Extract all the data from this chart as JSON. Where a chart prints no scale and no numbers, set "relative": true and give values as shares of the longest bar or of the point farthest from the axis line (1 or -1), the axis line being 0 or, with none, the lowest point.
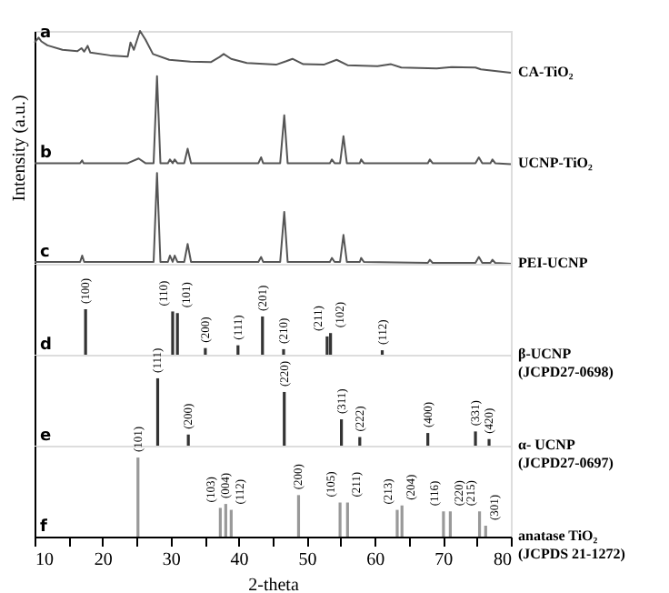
{
  "chart_data": [
    {
      "type": "line",
      "relative": true,
      "ylabel": "Intensity (a.u.)",
      "xlim": [
        10,
        80
      ],
      "tick_labels": false,
      "series": [
        {
          "name": "CA-TiO₂",
          "color": "#555555",
          "x": [
            10.0,
            10.6,
            11.0,
            11.9,
            14.1,
            16.3,
            16.9,
            17.3,
            17.8,
            18.2,
            21.1,
            23.7,
            24.1,
            24.6,
            25.5,
            26.3,
            27.4,
            29.8,
            32.9,
            35.9,
            37.2,
            37.8,
            38.9,
            41.2,
            45.5,
            47.0,
            47.9,
            49.5,
            52.5,
            54.4,
            56.0,
            60.4,
            62.4,
            63.9,
            69.1,
            71.3,
            74.8,
            75.6,
            80.0
          ],
          "values": [
            0.95,
            0.971,
            0.955,
            0.938,
            0.919,
            0.913,
            0.926,
            0.911,
            0.936,
            0.907,
            0.895,
            0.89,
            0.95,
            0.919,
            1.0,
            0.963,
            0.901,
            0.876,
            0.868,
            0.866,
            0.888,
            0.901,
            0.88,
            0.862,
            0.855,
            0.87,
            0.88,
            0.857,
            0.855,
            0.876,
            0.853,
            0.849,
            0.857,
            0.843,
            0.839,
            0.845,
            0.843,
            0.835,
            0.82
          ]
        },
        {
          "name": "UCNP-TiO₂",
          "color": "#555555",
          "x": [
            10.0,
            16.7,
            17.0,
            17.2,
            23.7,
            25.3,
            26.3,
            27.5,
            28.0,
            28.5,
            29.6,
            29.9,
            30.3,
            30.6,
            31.0,
            32.0,
            32.5,
            33.0,
            42.9,
            43.3,
            43.6,
            46.1,
            46.7,
            47.2,
            53.4,
            53.7,
            54.1,
            54.9,
            55.4,
            55.9,
            57.8,
            58.0,
            58.4,
            67.8,
            68.1,
            68.5,
            74.8,
            75.3,
            75.8,
            77.0,
            77.3,
            77.7,
            80.0
          ],
          "values": [
            0.432,
            0.432,
            0.444,
            0.432,
            0.432,
            0.452,
            0.432,
            0.432,
            0.806,
            0.432,
            0.432,
            0.448,
            0.432,
            0.448,
            0.432,
            0.432,
            0.494,
            0.432,
            0.432,
            0.457,
            0.432,
            0.432,
            0.638,
            0.432,
            0.432,
            0.448,
            0.432,
            0.432,
            0.548,
            0.432,
            0.432,
            0.448,
            0.432,
            0.432,
            0.448,
            0.432,
            0.432,
            0.457,
            0.432,
            0.432,
            0.448,
            0.432,
            0.428
          ]
        },
        {
          "name": "PEI-UCNP",
          "color": "#555555",
          "x": [
            10.0,
            16.7,
            17.0,
            17.3,
            27.5,
            28.0,
            28.5,
            29.6,
            29.9,
            30.3,
            30.6,
            31.0,
            32.0,
            32.5,
            33.0,
            42.9,
            43.3,
            43.6,
            46.1,
            46.7,
            47.2,
            53.4,
            53.7,
            54.1,
            54.9,
            55.4,
            55.9,
            57.8,
            58.0,
            58.4,
            67.8,
            68.1,
            68.5,
            74.8,
            75.3,
            75.8,
            77.0,
            77.3,
            77.7,
            80.0
          ],
          "values": [
            0.008,
            0.008,
            0.035,
            0.008,
            0.008,
            0.39,
            0.008,
            0.008,
            0.035,
            0.008,
            0.035,
            0.008,
            0.008,
            0.085,
            0.008,
            0.008,
            0.029,
            0.008,
            0.008,
            0.223,
            0.008,
            0.008,
            0.025,
            0.008,
            0.008,
            0.124,
            0.008,
            0.008,
            0.025,
            0.008,
            0.004,
            0.017,
            0.004,
            0.004,
            0.029,
            0.004,
            0.004,
            0.017,
            0.004,
            0.0
          ]
        }
      ],
      "annotations": [
        "a",
        "b",
        "c"
      ]
    },
    {
      "type": "bar",
      "relative": true,
      "xlim": [
        10,
        80
      ],
      "tick_labels": false,
      "series": [
        {
          "name": "β-UCNP\n(JCPD27-0698)",
          "color": "#333333",
          "x": [
            17.5,
            30.3,
            31.0,
            35.1,
            39.9,
            43.5,
            46.6,
            53.0,
            53.5,
            61.1
          ],
          "values": [
            1.0,
            0.951,
            0.915,
            0.146,
            0.207,
            0.841,
            0.122,
            0.402,
            0.476,
            0.098
          ]
        }
      ],
      "annotations": [
        "d",
        {
          "text": "(100)",
          "x": 17.5,
          "y": 1.0
        },
        {
          "text": "(110)",
          "x": 30.3,
          "y": 0.951
        },
        {
          "text": "(101)",
          "x": 31.0,
          "y": 0.915
        },
        {
          "text": "(200)",
          "x": 35.1,
          "y": 0.146
        },
        {
          "text": "(111)",
          "x": 39.9,
          "y": 0.207
        },
        {
          "text": "(201)",
          "x": 43.5,
          "y": 0.841
        },
        {
          "text": "(210)",
          "x": 46.6,
          "y": 0.122
        },
        {
          "text": "(211)",
          "x": 53.0,
          "y": 0.402
        },
        {
          "text": "(102)",
          "x": 53.5,
          "y": 0.476
        },
        {
          "text": "(112)",
          "x": 61.1,
          "y": 0.098
        }
      ]
    },
    {
      "type": "bar",
      "relative": true,
      "xlim": [
        10,
        80
      ],
      "tick_labels": false,
      "series": [
        {
          "name": "α- UCNP\n(JCPD27-0697)",
          "color": "#333333",
          "x": [
            28.1,
            32.6,
            46.7,
            55.1,
            57.8,
            67.8,
            74.8,
            76.8
          ],
          "values": [
            1.0,
            0.165,
            0.797,
            0.391,
            0.128,
            0.188,
            0.211,
            0.098
          ]
        }
      ],
      "annotations": [
        "e",
        {
          "text": "(111)",
          "x": 28.1,
          "y": 1.0
        },
        {
          "text": "(200)",
          "x": 32.6,
          "y": 0.165
        },
        {
          "text": "(220)",
          "x": 46.7,
          "y": 0.797
        },
        {
          "text": "(311)",
          "x": 55.1,
          "y": 0.391
        },
        {
          "text": "(222)",
          "x": 57.8,
          "y": 0.128
        },
        {
          "text": "(400)",
          "x": 67.8,
          "y": 0.188
        },
        {
          "text": "(331)",
          "x": 74.8,
          "y": 0.211
        },
        {
          "text": "(420)",
          "x": 76.8,
          "y": 0.098
        }
      ]
    },
    {
      "type": "bar",
      "relative": true,
      "xlabel": "2-theta",
      "xlim": [
        10,
        80
      ],
      "xticks": [
        10,
        {
          "value": 15,
          "label": null
        },
        20,
        {
          "value": 25,
          "label": null
        },
        30,
        {
          "value": 35,
          "label": null
        },
        40,
        {
          "value": 45,
          "label": null
        },
        50,
        {
          "value": 55,
          "label": null
        },
        60,
        {
          "value": 65,
          "label": null
        },
        70,
        {
          "value": 75,
          "label": null
        },
        80
      ],
      "series": [
        {
          "name": "anatase TiO₂\n(JCPDS 21-1272)",
          "color": "#999999",
          "x": [
            25.2,
            37.3,
            38.1,
            38.9,
            48.8,
            54.9,
            56.0,
            63.3,
            64.0,
            70.1,
            71.1,
            75.4,
            76.3
          ],
          "values": [
            1.0,
            0.363,
            0.413,
            0.338,
            0.525,
            0.431,
            0.431,
            0.338,
            0.394,
            0.319,
            0.319,
            0.319,
            0.138
          ]
        }
      ],
      "annotations": [
        "f",
        {
          "text": "(101)",
          "x": 25.2,
          "y": 1.0
        },
        {
          "text": "(103)",
          "x": 37.3,
          "y": 0.363
        },
        {
          "text": "(004)",
          "x": 38.1,
          "y": 0.413
        },
        {
          "text": "(112)",
          "x": 38.9,
          "y": 0.338
        },
        {
          "text": "(200)",
          "x": 48.8,
          "y": 0.525
        },
        {
          "text": "(105)",
          "x": 54.9,
          "y": 0.431
        },
        {
          "text": "(211)",
          "x": 56.0,
          "y": 0.431
        },
        {
          "text": "(213)",
          "x": 63.3,
          "y": 0.338
        },
        {
          "text": "(204)",
          "x": 64.0,
          "y": 0.394
        },
        {
          "text": "(116)",
          "x": 70.1,
          "y": 0.319
        },
        {
          "text": "(220)",
          "x": 71.1,
          "y": 0.319
        },
        {
          "text": "(215)",
          "x": 75.4,
          "y": 0.319
        },
        {
          "text": "(301)",
          "x": 76.3,
          "y": 0.138
        }
      ]
    }
  ]
}
